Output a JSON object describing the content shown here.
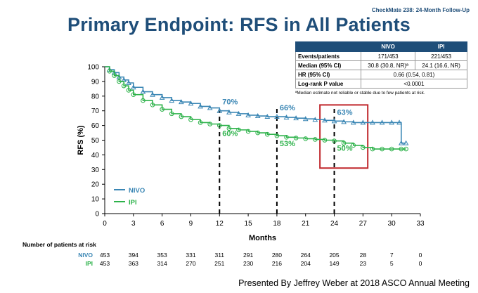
{
  "header": {
    "tag": "CheckMate 238: 24-Month Follow-Up",
    "title": "Primary Endpoint: RFS in All Patients"
  },
  "footer": "Presented By Jeffrey Weber at 2018 ASCO Annual Meeting",
  "stats_table": {
    "columns": [
      "",
      "NIVO",
      "IPI"
    ],
    "rows": [
      {
        "label": "Events/patients",
        "nivo": "171/453",
        "ipi": "221/453"
      },
      {
        "label": "Median (95% CI)",
        "nivo": "30.8 (30.8, NR)ª",
        "ipi": "24.1 (16.6, NR)"
      },
      {
        "label": "HR (95% CI)",
        "combined": "0.66 (0.54, 0.81)"
      },
      {
        "label": "Log-rank P value",
        "combined": "<0.0001"
      }
    ],
    "footnote": "ªMedian estimate not reliable or stable due to few patients at risk."
  },
  "colors": {
    "nivo": "#3a86b4",
    "ipi": "#2db24a",
    "title": "#1f4e79",
    "highlight": "#c0282d"
  },
  "chart_data": {
    "type": "line",
    "xlabel": "Months",
    "ylabel": "RFS (%)",
    "xlim": [
      0,
      33
    ],
    "ylim": [
      0,
      100
    ],
    "xticks": [
      0,
      3,
      6,
      9,
      12,
      15,
      18,
      21,
      24,
      27,
      30,
      33
    ],
    "yticks": [
      0,
      10,
      20,
      30,
      40,
      50,
      60,
      70,
      80,
      90,
      100
    ],
    "grid": false,
    "legend_position": "bottom-left",
    "series": [
      {
        "name": "NIVO",
        "color": "#3a86b4",
        "x": [
          0,
          0.5,
          1,
          1.5,
          2,
          2.5,
          3,
          4,
          5,
          6,
          7,
          8,
          9,
          10,
          11,
          12,
          13,
          14,
          15,
          16,
          17,
          18,
          19,
          20,
          21,
          22,
          23,
          24,
          25,
          26,
          27,
          28,
          29,
          30,
          30.8,
          31,
          31.5
        ],
        "y": [
          100,
          98,
          96,
          93,
          91,
          89,
          86,
          83,
          81,
          79,
          77,
          76,
          75,
          73,
          72,
          70,
          69,
          68,
          67,
          66.5,
          66,
          66,
          65.5,
          65,
          64.5,
          64,
          63.5,
          63,
          62.5,
          62,
          62,
          62,
          62,
          62,
          62,
          48,
          48
        ]
      },
      {
        "name": "IPI",
        "color": "#2db24a",
        "x": [
          0,
          0.5,
          1,
          1.5,
          2,
          2.5,
          3,
          4,
          5,
          6,
          7,
          8,
          9,
          10,
          11,
          12,
          13,
          14,
          15,
          16,
          17,
          18,
          19,
          20,
          21,
          22,
          23,
          24,
          25,
          26,
          27,
          28,
          29,
          30,
          31,
          31.5
        ],
        "y": [
          100,
          97,
          94,
          90,
          87,
          84,
          81,
          77,
          74,
          71,
          68,
          66,
          64,
          62,
          61,
          60,
          58,
          57,
          56,
          55,
          54,
          53,
          52,
          51.5,
          51,
          50.5,
          50,
          49.5,
          48,
          46.5,
          45,
          44,
          44,
          44,
          44,
          44
        ]
      }
    ],
    "vlines": [
      12,
      18,
      24
    ],
    "annotations": [
      {
        "text": "70%",
        "series": "NIVO",
        "x": 12,
        "y": 70
      },
      {
        "text": "60%",
        "series": "IPI",
        "x": 12,
        "y": 60
      },
      {
        "text": "66%",
        "series": "NIVO",
        "x": 18,
        "y": 66
      },
      {
        "text": "53%",
        "series": "IPI",
        "x": 18,
        "y": 53
      },
      {
        "text": "63%",
        "series": "NIVO",
        "x": 24,
        "y": 63
      },
      {
        "text": "50%",
        "series": "IPI",
        "x": 24,
        "y": 50
      }
    ],
    "highlight_box": {
      "x": [
        22.5,
        27.5
      ],
      "y": [
        31,
        74
      ]
    },
    "at_risk": {
      "title": "Number of patients at risk",
      "times": [
        0,
        3,
        6,
        9,
        12,
        15,
        18,
        21,
        24,
        27,
        30,
        33
      ],
      "rows": [
        {
          "name": "NIVO",
          "values": [
            453,
            394,
            353,
            331,
            311,
            291,
            280,
            264,
            205,
            28,
            7,
            0
          ]
        },
        {
          "name": "IPI",
          "values": [
            453,
            363,
            314,
            270,
            251,
            230,
            216,
            204,
            149,
            23,
            5,
            0
          ]
        }
      ]
    }
  }
}
